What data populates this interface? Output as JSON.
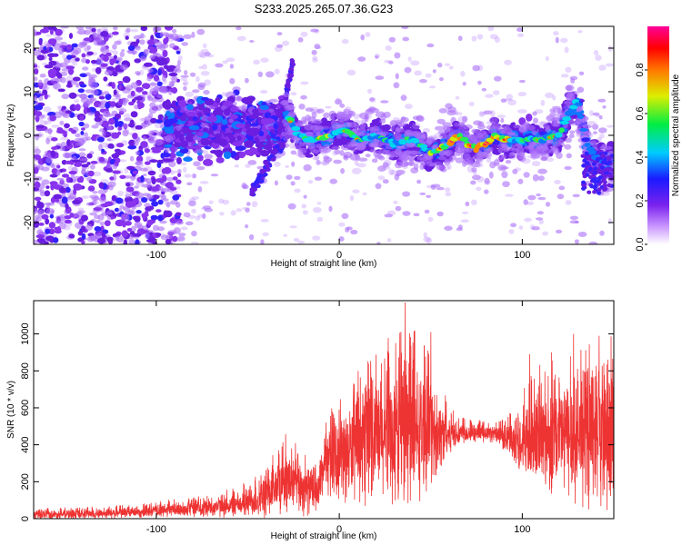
{
  "title": "S233.2025.265.07.36.G23",
  "chart_data": [
    {
      "type": "heatmap",
      "name": "spectrogram",
      "xlabel": "Height of straight line (km)",
      "ylabel": "Frequency (Hz)",
      "xlim": [
        -167,
        150
      ],
      "ylim": [
        -25,
        25
      ],
      "xticks": [
        -100,
        0,
        100
      ],
      "xtick_labels": [
        "-100",
        "0",
        "100"
      ],
      "yticks": [
        -20,
        -10,
        0,
        10,
        20
      ],
      "ytick_labels": [
        "-20",
        "-10",
        "0",
        "10",
        "20"
      ],
      "colorbar": {
        "label": "Normalized spectral amplitude",
        "range": [
          0,
          1
        ],
        "ticks": [
          0.0,
          0.2,
          0.4,
          0.6,
          0.8
        ],
        "tick_labels": [
          "0.0",
          "0.2",
          "0.4",
          "0.6",
          "0.8"
        ],
        "colormap": "rainbow (white-violet-blue-cyan-green-yellow-red-magenta)"
      },
      "ridge_frequency_hz": [
        [
          -28,
          4
        ],
        [
          -22,
          0
        ],
        [
          -15,
          -1
        ],
        [
          -5,
          0
        ],
        [
          0,
          1
        ],
        [
          5,
          1
        ],
        [
          10,
          -1
        ],
        [
          20,
          0
        ],
        [
          30,
          -2
        ],
        [
          40,
          -1
        ],
        [
          50,
          -4
        ],
        [
          55,
          -3
        ],
        [
          60,
          -2
        ],
        [
          65,
          0
        ],
        [
          70,
          -2
        ],
        [
          75,
          -3
        ],
        [
          80,
          -2
        ],
        [
          85,
          0
        ],
        [
          90,
          -1
        ],
        [
          100,
          -1
        ],
        [
          110,
          -1
        ],
        [
          120,
          0
        ],
        [
          125,
          5
        ],
        [
          130,
          8
        ],
        [
          135,
          -2
        ],
        [
          140,
          -5
        ],
        [
          145,
          -6
        ]
      ]
    },
    {
      "type": "line",
      "name": "snr",
      "xlabel": "Height of straight line (km)",
      "ylabel": "SNR (10 * v/v)",
      "xlim": [
        -167,
        150
      ],
      "ylim": [
        0,
        1180
      ],
      "xticks": [
        -100,
        0,
        100
      ],
      "xtick_labels": [
        "-100",
        "0",
        "100"
      ],
      "yticks": [
        0,
        200,
        400,
        600,
        800,
        1000
      ],
      "ytick_labels": [
        "0",
        "200",
        "400",
        "600",
        "800",
        "1000"
      ],
      "color": "#ee3333",
      "envelope": [
        {
          "x": -167,
          "mean": 20,
          "spread": 25
        },
        {
          "x": -140,
          "mean": 25,
          "spread": 25
        },
        {
          "x": -110,
          "mean": 35,
          "spread": 30
        },
        {
          "x": -80,
          "mean": 55,
          "spread": 45
        },
        {
          "x": -55,
          "mean": 75,
          "spread": 65
        },
        {
          "x": -40,
          "mean": 120,
          "spread": 120
        },
        {
          "x": -30,
          "mean": 210,
          "spread": 170
        },
        {
          "x": -20,
          "mean": 170,
          "spread": 150
        },
        {
          "x": -12,
          "mean": 140,
          "spread": 100
        },
        {
          "x": -8,
          "mean": 300,
          "spread": 160
        },
        {
          "x": 0,
          "mean": 330,
          "spread": 220
        },
        {
          "x": 10,
          "mean": 380,
          "spread": 280
        },
        {
          "x": 20,
          "mean": 420,
          "spread": 320
        },
        {
          "x": 30,
          "mean": 450,
          "spread": 380
        },
        {
          "x": 40,
          "mean": 460,
          "spread": 400
        },
        {
          "x": 50,
          "mean": 470,
          "spread": 280
        },
        {
          "x": 60,
          "mean": 460,
          "spread": 110
        },
        {
          "x": 70,
          "mean": 465,
          "spread": 50
        },
        {
          "x": 85,
          "mean": 460,
          "spread": 45
        },
        {
          "x": 95,
          "mean": 420,
          "spread": 110
        },
        {
          "x": 105,
          "mean": 430,
          "spread": 250
        },
        {
          "x": 115,
          "mean": 440,
          "spread": 300
        },
        {
          "x": 125,
          "mean": 450,
          "spread": 330
        },
        {
          "x": 135,
          "mean": 460,
          "spread": 360
        },
        {
          "x": 145,
          "mean": 430,
          "spread": 380
        },
        {
          "x": 150,
          "mean": 420,
          "spread": 380
        }
      ],
      "peaks": [
        {
          "x": 36,
          "y": 1170
        },
        {
          "x": 50,
          "y": 1010
        },
        {
          "x": 128,
          "y": 1000
        },
        {
          "x": 142,
          "y": 990
        },
        {
          "x": 104,
          "y": 890
        },
        {
          "x": 23,
          "y": 840
        },
        {
          "x": -26,
          "y": 380
        },
        {
          "x": 116,
          "y": 900
        }
      ]
    }
  ]
}
